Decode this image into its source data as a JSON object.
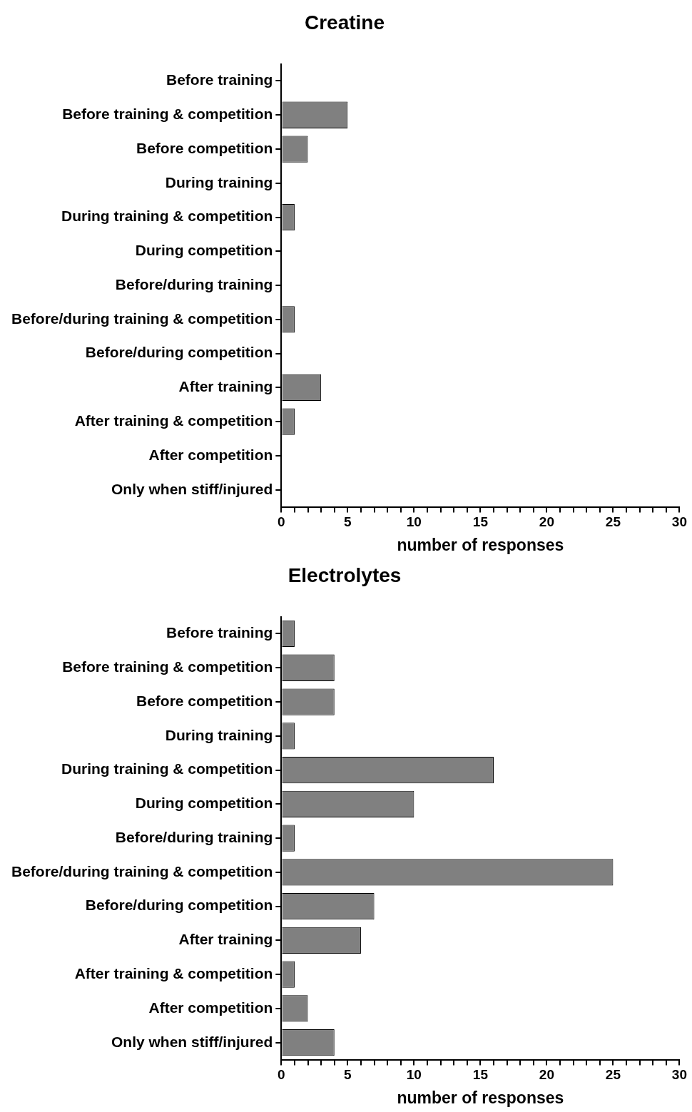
{
  "chart_data": [
    {
      "type": "bar",
      "orientation": "horizontal",
      "title": "Creatine",
      "xlabel": "number of responses",
      "categories": [
        "Before training",
        "Before training & competition",
        "Before competition",
        "During training",
        "During training & competition",
        "During competition",
        "Before/during training",
        "Before/during training & competition",
        "Before/during competition",
        "After training",
        "After training & competition",
        "After competition",
        "Only when stiff/injured"
      ],
      "values": [
        0,
        5,
        2,
        0,
        1,
        0,
        0,
        1,
        0,
        3,
        1,
        0,
        0
      ],
      "color": "#808080",
      "xlim": [
        0,
        30
      ],
      "xticks": [
        0,
        {
          "value": 1,
          "label": null
        },
        {
          "value": 2,
          "label": null
        },
        {
          "value": 3,
          "label": null
        },
        {
          "value": 4,
          "label": null
        },
        5,
        {
          "value": 6,
          "label": null
        },
        {
          "value": 7,
          "label": null
        },
        {
          "value": 8,
          "label": null
        },
        {
          "value": 9,
          "label": null
        },
        10,
        {
          "value": 11,
          "label": null
        },
        {
          "value": 12,
          "label": null
        },
        {
          "value": 13,
          "label": null
        },
        {
          "value": 14,
          "label": null
        },
        15,
        {
          "value": 16,
          "label": null
        },
        {
          "value": 17,
          "label": null
        },
        {
          "value": 18,
          "label": null
        },
        {
          "value": 19,
          "label": null
        },
        20,
        {
          "value": 21,
          "label": null
        },
        {
          "value": 22,
          "label": null
        },
        {
          "value": 23,
          "label": null
        },
        {
          "value": 24,
          "label": null
        },
        25,
        {
          "value": 26,
          "label": null
        },
        {
          "value": 27,
          "label": null
        },
        {
          "value": 28,
          "label": null
        },
        {
          "value": 29,
          "label": null
        },
        30
      ],
      "grid": false,
      "legend": false
    },
    {
      "type": "bar",
      "orientation": "horizontal",
      "title": "Electrolytes",
      "xlabel": "number of responses",
      "categories": [
        "Before training",
        "Before training & competition",
        "Before competition",
        "During training",
        "During training & competition",
        "During competition",
        "Before/during training",
        "Before/during training & competition",
        "Before/during competition",
        "After training",
        "After training & competition",
        "After competition",
        "Only when stiff/injured"
      ],
      "values": [
        1,
        4,
        4,
        1,
        16,
        10,
        1,
        25,
        7,
        6,
        1,
        2,
        4
      ],
      "color": "#808080",
      "xlim": [
        0,
        30
      ],
      "xticks": [
        0,
        {
          "value": 1,
          "label": null
        },
        {
          "value": 2,
          "label": null
        },
        {
          "value": 3,
          "label": null
        },
        {
          "value": 4,
          "label": null
        },
        5,
        {
          "value": 6,
          "label": null
        },
        {
          "value": 7,
          "label": null
        },
        {
          "value": 8,
          "label": null
        },
        {
          "value": 9,
          "label": null
        },
        10,
        {
          "value": 11,
          "label": null
        },
        {
          "value": 12,
          "label": null
        },
        {
          "value": 13,
          "label": null
        },
        {
          "value": 14,
          "label": null
        },
        15,
        {
          "value": 16,
          "label": null
        },
        {
          "value": 17,
          "label": null
        },
        {
          "value": 18,
          "label": null
        },
        {
          "value": 19,
          "label": null
        },
        20,
        {
          "value": 21,
          "label": null
        },
        {
          "value": 22,
          "label": null
        },
        {
          "value": 23,
          "label": null
        },
        {
          "value": 24,
          "label": null
        },
        25,
        {
          "value": 26,
          "label": null
        },
        {
          "value": 27,
          "label": null
        },
        {
          "value": 28,
          "label": null
        },
        {
          "value": 29,
          "label": null
        },
        30
      ],
      "grid": false,
      "legend": false
    }
  ]
}
